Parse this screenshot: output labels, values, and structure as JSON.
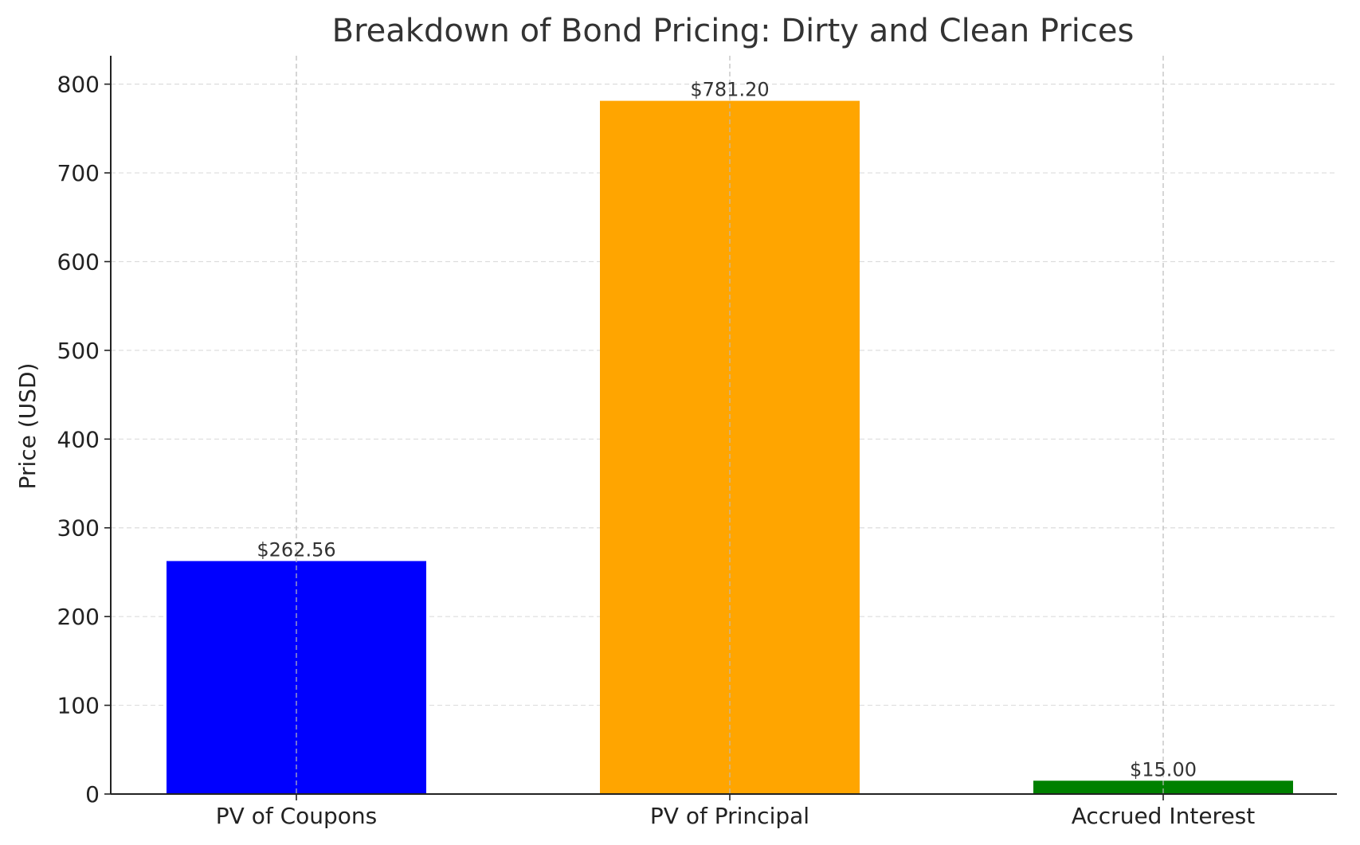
{
  "chart_data": {
    "type": "bar",
    "title": "Breakdown of Bond Pricing: Dirty and Clean Prices",
    "xlabel": "",
    "ylabel": "Price (USD)",
    "categories": [
      "PV of Coupons",
      "PV of Principal",
      "Accrued Interest"
    ],
    "values": [
      262.56,
      781.2,
      15.0
    ],
    "data_labels": [
      "$262.56",
      "$781.20",
      "$15.00"
    ],
    "colors": [
      "#0000ff",
      "#ffa500",
      "#008000"
    ],
    "ylim": [
      0,
      832
    ],
    "yticks": [
      0,
      100,
      200,
      300,
      400,
      500,
      600,
      700,
      800
    ],
    "grid": true,
    "legend": "none"
  }
}
